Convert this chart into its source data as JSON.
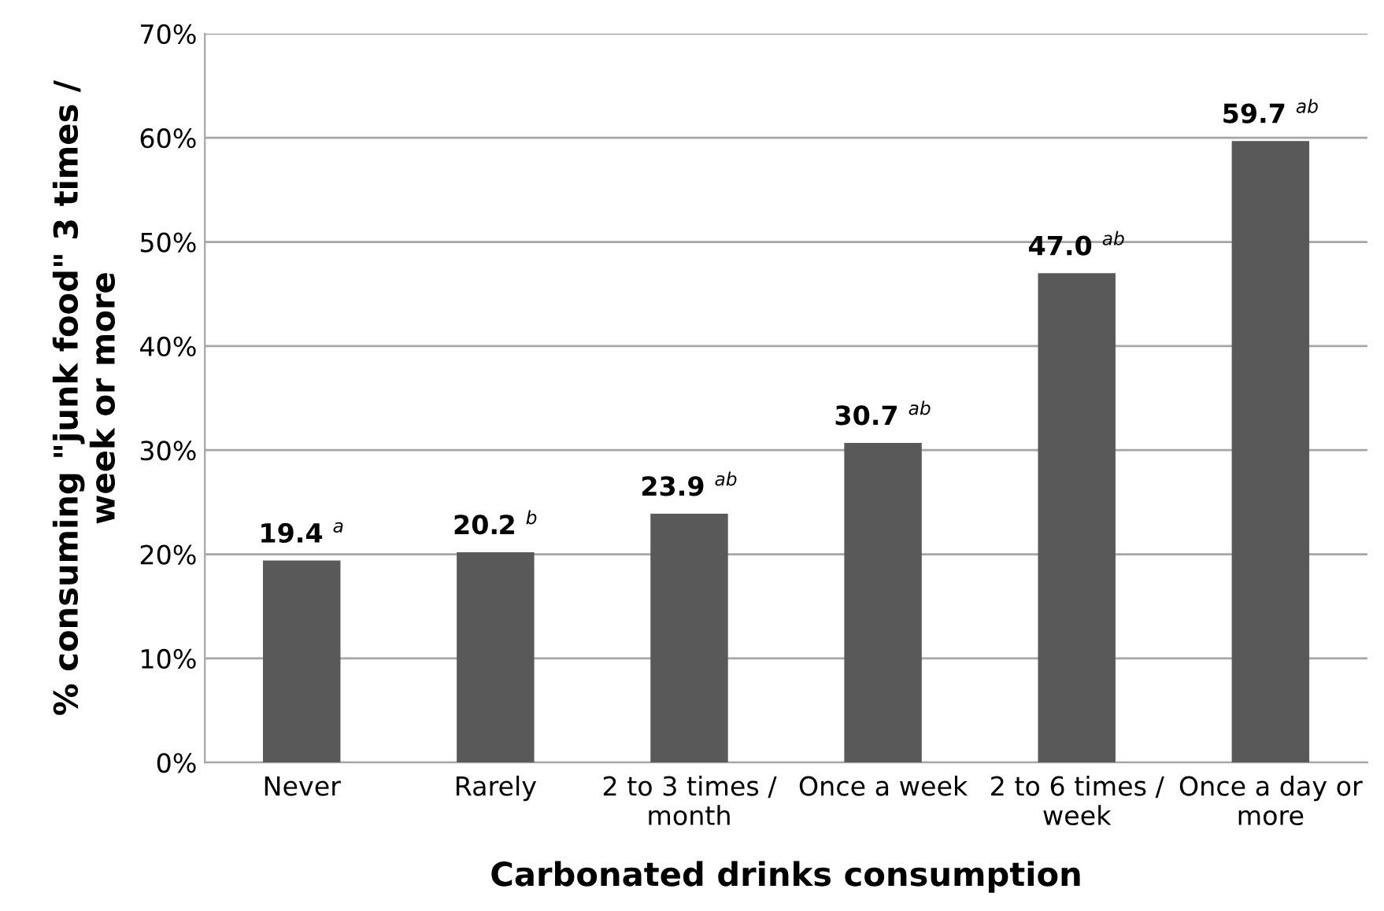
{
  "chart_data": {
    "type": "bar",
    "xlabel": "Carbonated drinks consumption",
    "ylabel": "% consuming \"junk food\" 3 times /\nweek or more",
    "categories": [
      "Never",
      "Rarely",
      "2 to 3 times /\nmonth",
      "Once a week",
      "2 to 6 times /\nweek",
      "Once a day or\nmore"
    ],
    "values": [
      19.4,
      20.2,
      23.9,
      30.7,
      47.0,
      59.7
    ],
    "value_labels": [
      "19.4 $^{a}$",
      "20.2 $^{b}$",
      "23.9 $^{ab}$",
      "30.7 $^{ab}$",
      "47.0 $^{ab}$",
      "59.7 $^{ab}$"
    ],
    "color": "#595959",
    "ylim": [
      0,
      70
    ],
    "yticks": [
      {
        "value": 0,
        "label": "0%"
      },
      {
        "value": 10,
        "label": "10%"
      },
      {
        "value": 20,
        "label": "20%"
      },
      {
        "value": 30,
        "label": "30%"
      },
      {
        "value": 40,
        "label": "40%"
      },
      {
        "value": 50,
        "label": "50%"
      },
      {
        "value": 60,
        "label": "60%"
      },
      {
        "value": 70,
        "label": "70%"
      }
    ],
    "grid": "y",
    "legend": false
  }
}
